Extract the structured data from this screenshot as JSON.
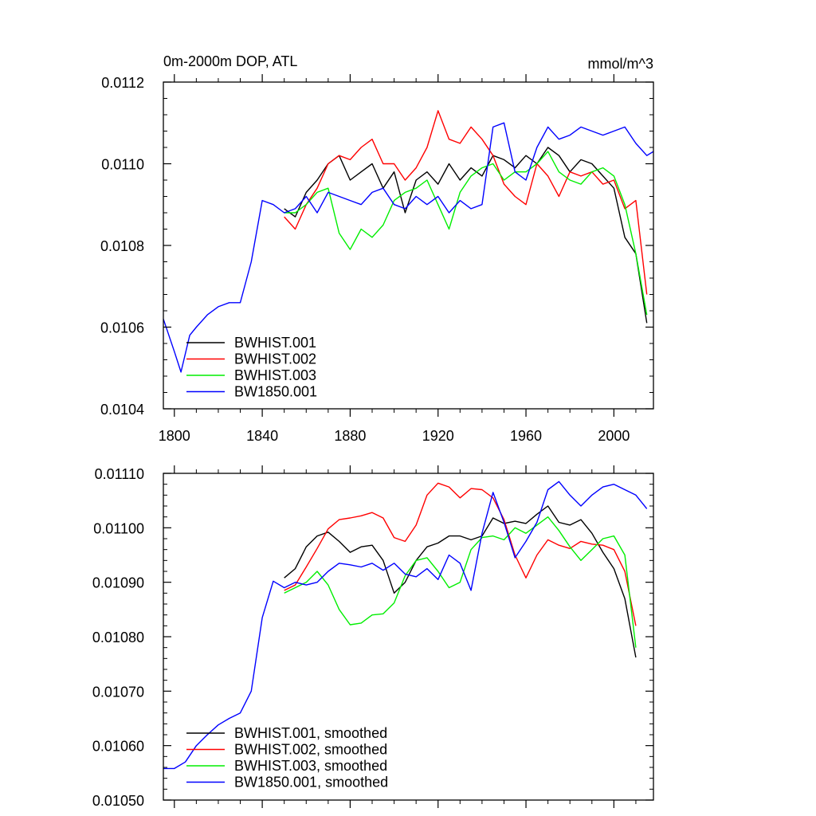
{
  "chart_data": [
    {
      "type": "line",
      "title_left": "0m-2000m DOP, ATL",
      "title_right": "mmol/m^3",
      "xlim": [
        1795,
        2018
      ],
      "ylim": [
        0.0104,
        0.0112
      ],
      "x_ticks": [
        1800,
        1840,
        1880,
        1920,
        1960,
        2000
      ],
      "x_tick_labels": [
        "1800",
        "1840",
        "1880",
        "1920",
        "1960",
        "2000"
      ],
      "y_ticks": [
        0.0104,
        0.0106,
        0.0108,
        0.011,
        0.0112
      ],
      "y_tick_labels": [
        "0.0104",
        "0.0106",
        "0.0108",
        "0.0110",
        "0.0112"
      ],
      "legend_placement": "bottom-left",
      "grid": false,
      "series": [
        {
          "name": "BWHIST.001",
          "color": "#000000",
          "x": [
            1850,
            1855,
            1860,
            1865,
            1870,
            1875,
            1880,
            1885,
            1890,
            1895,
            1900,
            1905,
            1910,
            1915,
            1920,
            1925,
            1930,
            1935,
            1940,
            1945,
            1950,
            1955,
            1960,
            1965,
            1970,
            1975,
            1980,
            1985,
            1990,
            1995,
            2000,
            2005,
            2010,
            2015
          ],
          "y": [
            0.01089,
            0.01087,
            0.01093,
            0.01096,
            0.011,
            0.01102,
            0.01096,
            0.01098,
            0.011,
            0.01094,
            0.01098,
            0.01088,
            0.01096,
            0.01098,
            0.01095,
            0.011,
            0.01096,
            0.01099,
            0.01097,
            0.01102,
            0.01101,
            0.01099,
            0.01102,
            0.011,
            0.01104,
            0.01102,
            0.01098,
            0.01101,
            0.011,
            0.01097,
            0.01094,
            0.01082,
            0.01078,
            0.01061
          ]
        },
        {
          "name": "BWHIST.002",
          "color": "#ff0000",
          "x": [
            1850,
            1855,
            1860,
            1865,
            1870,
            1875,
            1880,
            1885,
            1890,
            1895,
            1900,
            1905,
            1910,
            1915,
            1920,
            1925,
            1930,
            1935,
            1940,
            1945,
            1950,
            1955,
            1960,
            1965,
            1970,
            1975,
            1980,
            1985,
            1990,
            1995,
            2000,
            2005,
            2010,
            2015
          ],
          "y": [
            0.01087,
            0.01084,
            0.0109,
            0.01094,
            0.011,
            0.01102,
            0.01101,
            0.01104,
            0.01106,
            0.011,
            0.011,
            0.01096,
            0.01099,
            0.01104,
            0.01113,
            0.01106,
            0.01105,
            0.01109,
            0.01106,
            0.01102,
            0.01095,
            0.01092,
            0.0109,
            0.011,
            0.01097,
            0.01092,
            0.01098,
            0.01097,
            0.01098,
            0.01095,
            0.01096,
            0.01089,
            0.01091,
            0.01068
          ]
        },
        {
          "name": "BWHIST.003",
          "color": "#00ee00",
          "x": [
            1850,
            1855,
            1860,
            1865,
            1870,
            1875,
            1880,
            1885,
            1890,
            1895,
            1900,
            1905,
            1910,
            1915,
            1920,
            1925,
            1930,
            1935,
            1940,
            1945,
            1950,
            1955,
            1960,
            1965,
            1970,
            1975,
            1980,
            1985,
            1990,
            1995,
            2000,
            2005,
            2010,
            2015
          ],
          "y": [
            0.01088,
            0.01088,
            0.0109,
            0.01093,
            0.01094,
            0.01083,
            0.01079,
            0.01084,
            0.01082,
            0.01085,
            0.01091,
            0.01093,
            0.01094,
            0.01096,
            0.0109,
            0.01084,
            0.01093,
            0.01097,
            0.01099,
            0.011,
            0.01096,
            0.01098,
            0.01098,
            0.011,
            0.01103,
            0.01098,
            0.01096,
            0.01095,
            0.01098,
            0.01099,
            0.01097,
            0.0109,
            0.01078,
            0.01063
          ]
        },
        {
          "name": "BW1850.001",
          "color": "#0000ff",
          "x": [
            1795,
            1800,
            1803,
            1807,
            1810,
            1815,
            1820,
            1825,
            1830,
            1835,
            1840,
            1845,
            1850,
            1855,
            1860,
            1865,
            1870,
            1875,
            1880,
            1885,
            1890,
            1895,
            1900,
            1905,
            1910,
            1915,
            1920,
            1925,
            1930,
            1935,
            1940,
            1945,
            1950,
            1955,
            1960,
            1965,
            1970,
            1975,
            1980,
            1985,
            1990,
            1995,
            2000,
            2005,
            2010,
            2015,
            2018
          ],
          "y": [
            0.01062,
            0.01054,
            0.01049,
            0.01058,
            0.0106,
            0.01063,
            0.01065,
            0.01066,
            0.01066,
            0.01076,
            0.01091,
            0.0109,
            0.01088,
            0.01089,
            0.01092,
            0.01088,
            0.01093,
            0.01092,
            0.01091,
            0.0109,
            0.01093,
            0.01094,
            0.0109,
            0.01089,
            0.01092,
            0.0109,
            0.01092,
            0.01088,
            0.01091,
            0.01089,
            0.0109,
            0.01109,
            0.0111,
            0.01098,
            0.01096,
            0.01104,
            0.01109,
            0.01106,
            0.01107,
            0.01109,
            0.01108,
            0.01107,
            0.01108,
            0.01109,
            0.01105,
            0.01102,
            0.01103
          ]
        }
      ]
    },
    {
      "type": "line",
      "xlim": [
        1795,
        2018
      ],
      "ylim": [
        0.0105,
        0.0111
      ],
      "x_ticks": [
        1800,
        1840,
        1880,
        1920,
        1960,
        2000
      ],
      "y_ticks": [
        0.0105,
        0.0106,
        0.0107,
        0.0108,
        0.0109,
        0.011,
        0.0111
      ],
      "y_tick_labels": [
        "0.01050",
        "0.01060",
        "0.01070",
        "0.01080",
        "0.01090",
        "0.01100",
        "0.01110"
      ],
      "legend_placement": "bottom-left",
      "grid": false,
      "series": [
        {
          "name": "BWHIST.001, smoothed",
          "color": "#000000",
          "x": [
            1850,
            1855,
            1860,
            1865,
            1870,
            1875,
            1880,
            1885,
            1890,
            1895,
            1900,
            1905,
            1910,
            1915,
            1920,
            1925,
            1930,
            1935,
            1940,
            1945,
            1950,
            1955,
            1960,
            1965,
            1970,
            1975,
            1980,
            1985,
            1990,
            1995,
            2000,
            2005,
            2010
          ],
          "y": [
            0.010908,
            0.010925,
            0.010965,
            0.010985,
            0.010992,
            0.010975,
            0.010955,
            0.010965,
            0.010968,
            0.01094,
            0.01088,
            0.0109,
            0.01094,
            0.010965,
            0.010972,
            0.010985,
            0.010985,
            0.010978,
            0.010985,
            0.011018,
            0.011008,
            0.011012,
            0.011008,
            0.011025,
            0.01104,
            0.01101,
            0.011005,
            0.011015,
            0.01099,
            0.010955,
            0.010925,
            0.01087,
            0.010762
          ]
        },
        {
          "name": "BWHIST.002, smoothed",
          "color": "#ff0000",
          "x": [
            1850,
            1855,
            1860,
            1865,
            1870,
            1875,
            1880,
            1885,
            1890,
            1895,
            1900,
            1905,
            1910,
            1915,
            1920,
            1925,
            1930,
            1935,
            1940,
            1945,
            1950,
            1955,
            1960,
            1965,
            1970,
            1975,
            1980,
            1985,
            1990,
            1995,
            2000,
            2005,
            2010
          ],
          "y": [
            0.010885,
            0.010895,
            0.010928,
            0.010962,
            0.010998,
            0.011015,
            0.011018,
            0.011022,
            0.011028,
            0.011018,
            0.010982,
            0.010975,
            0.011005,
            0.01106,
            0.011082,
            0.011075,
            0.011055,
            0.011072,
            0.01107,
            0.011055,
            0.011015,
            0.01095,
            0.010908,
            0.01095,
            0.010978,
            0.010968,
            0.010962,
            0.010975,
            0.01097,
            0.010968,
            0.01096,
            0.01092,
            0.01082
          ]
        },
        {
          "name": "BWHIST.003, smoothed",
          "color": "#00ee00",
          "x": [
            1850,
            1855,
            1860,
            1865,
            1870,
            1875,
            1880,
            1885,
            1890,
            1895,
            1900,
            1905,
            1910,
            1915,
            1920,
            1925,
            1930,
            1935,
            1940,
            1945,
            1950,
            1955,
            1960,
            1965,
            1970,
            1975,
            1980,
            1985,
            1990,
            1995,
            2000,
            2005,
            2010
          ],
          "y": [
            0.01088,
            0.01089,
            0.0109,
            0.01092,
            0.010895,
            0.01085,
            0.010822,
            0.010825,
            0.01084,
            0.010842,
            0.010862,
            0.010912,
            0.01094,
            0.010945,
            0.01092,
            0.01089,
            0.0109,
            0.01096,
            0.010982,
            0.010985,
            0.010978,
            0.011,
            0.01099,
            0.011005,
            0.01102,
            0.010995,
            0.010965,
            0.01094,
            0.01096,
            0.01098,
            0.010985,
            0.01095,
            0.01078
          ]
        },
        {
          "name": "BW1850.001, smoothed",
          "color": "#0000ff",
          "x": [
            1795,
            1800,
            1805,
            1810,
            1815,
            1820,
            1825,
            1830,
            1835,
            1840,
            1845,
            1850,
            1855,
            1860,
            1865,
            1870,
            1875,
            1880,
            1885,
            1890,
            1895,
            1900,
            1905,
            1910,
            1915,
            1920,
            1925,
            1930,
            1935,
            1940,
            1945,
            1950,
            1955,
            1960,
            1965,
            1970,
            1975,
            1980,
            1985,
            1990,
            1995,
            2000,
            2005,
            2010,
            2015
          ],
          "y": [
            0.010558,
            0.010558,
            0.01057,
            0.0106,
            0.01062,
            0.010638,
            0.01065,
            0.01066,
            0.0107,
            0.010835,
            0.010902,
            0.01089,
            0.0109,
            0.010895,
            0.0109,
            0.01092,
            0.010935,
            0.010932,
            0.010928,
            0.010935,
            0.010922,
            0.010935,
            0.010915,
            0.01091,
            0.010925,
            0.010905,
            0.01095,
            0.010935,
            0.010885,
            0.01099,
            0.011065,
            0.01101,
            0.010945,
            0.010975,
            0.01101,
            0.01107,
            0.011085,
            0.01106,
            0.01104,
            0.01106,
            0.011075,
            0.01108,
            0.01107,
            0.01106,
            0.011035
          ]
        }
      ]
    }
  ]
}
